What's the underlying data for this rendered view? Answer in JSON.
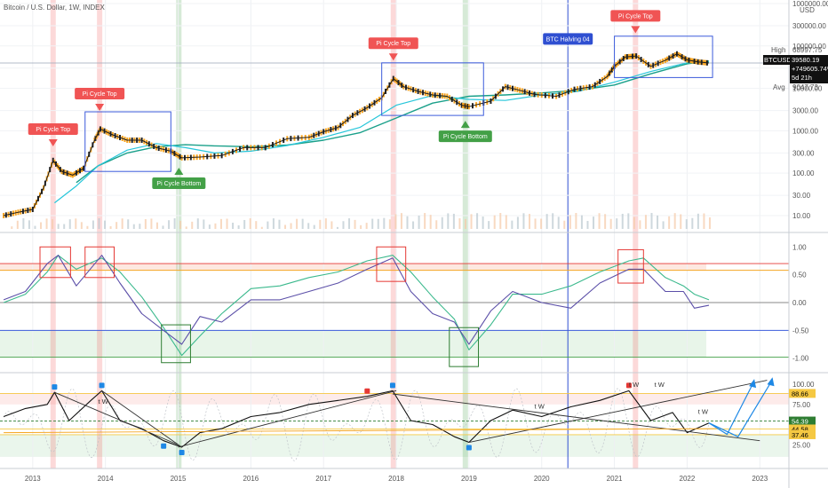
{
  "header": {
    "title": "Bitcoin / U.S. Dollar, 1W, INDEX"
  },
  "colors": {
    "up": "#f7a21b",
    "down": "#222222",
    "ma_slow": "#1aa08a",
    "ma_fast": "#26c6da",
    "osc_line": "#5b4fa8",
    "osc_signal": "#3bb98d",
    "rsi_line": "#111111",
    "top_red": "#f05454",
    "bottom_green": "#43a047",
    "halving_blue": "#2f4fd1",
    "box_blue": "#3b5bdb",
    "box_red": "#e53935",
    "box_green": "#2e7d32",
    "arrow_blue": "#1e88e5",
    "level_orange": "#f5a623"
  },
  "price_axis": {
    "ticks": [
      "1000000.00",
      "300000.00",
      "100000.00",
      "30000.00",
      "10000.00",
      "3000.00",
      "1000.00",
      "300.00",
      "100.00",
      "30.00",
      "10.00"
    ],
    "usd_label": "USD",
    "high_label": "High",
    "high_value": "68997.75",
    "symbol": "BTCUSD",
    "last_price": "39580.19",
    "change": "+749605.74%",
    "countdown": "5d 21h",
    "avg_label": "Avg",
    "avg_value": "9047.73"
  },
  "osc_axis": {
    "ticks": [
      "1.00",
      "0.50",
      "0.00",
      "-0.50",
      "-1.00"
    ]
  },
  "rsi_axis": {
    "ticks": [
      "100.00",
      "75.00",
      "50.00",
      "25.00"
    ],
    "tags": [
      {
        "value": "88.66",
        "color": "#f5c842",
        "text": "#000000"
      },
      {
        "value": "54.39",
        "color": "#2e7d32",
        "text": "#ffffff"
      },
      {
        "value": "44.58",
        "color": "#f5c842",
        "text": "#000000"
      },
      {
        "value": "37.46",
        "color": "#f5c842",
        "text": "#000000"
      }
    ]
  },
  "time_axis": {
    "labels": [
      "2013",
      "2014",
      "2015",
      "2016",
      "2017",
      "2018",
      "2019",
      "2020",
      "2021",
      "2022",
      "2023"
    ]
  },
  "annotations": {
    "tops": [
      {
        "label": "Pi Cycle Top",
        "date": 2013.28
      },
      {
        "label": "Pi Cycle Top",
        "date": 2013.92
      },
      {
        "label": "Pi Cycle Top",
        "date": 2017.96
      },
      {
        "label": "Pi Cycle Top",
        "date": 2021.29
      }
    ],
    "bottoms": [
      {
        "label": "Pi Cycle Bottom",
        "date": 2015.01
      },
      {
        "label": "Pi Cycle Bottom",
        "date": 2018.95
      }
    ],
    "halving": {
      "label": "BTC Halving 04",
      "date": 2020.36
    },
    "wave_labels": [
      "t W",
      "t W",
      "t W",
      "t W",
      "t W"
    ]
  },
  "chart_data": {
    "type": "line",
    "scale": "log",
    "x_range": [
      2012.55,
      2023.4
    ],
    "y_range": [
      4,
      1000000
    ],
    "series": [
      {
        "x": [
          2012.6,
          2012.8,
          2013.0,
          2013.15,
          2013.28,
          2013.4,
          2013.55,
          2013.7,
          2013.85,
          2013.93,
          2014.1,
          2014.3,
          2014.5,
          2014.7,
          2014.9,
          2015.05,
          2015.3,
          2015.6,
          2015.9,
          2016.2,
          2016.5,
          2016.8,
          2017.0,
          2017.2,
          2017.4,
          2017.6,
          2017.8,
          2017.96,
          2018.1,
          2018.3,
          2018.5,
          2018.7,
          2018.9,
          2019.0,
          2019.3,
          2019.5,
          2019.7,
          2019.9,
          2020.2,
          2020.45,
          2020.7,
          2020.9,
          2021.0,
          2021.15,
          2021.3,
          2021.5,
          2021.7,
          2021.86,
          2022.0,
          2022.15,
          2022.3
        ],
        "values": [
          10,
          12,
          14,
          45,
          200,
          110,
          90,
          130,
          600,
          1100,
          800,
          600,
          600,
          400,
          330,
          230,
          240,
          260,
          400,
          400,
          650,
          700,
          950,
          1200,
          2300,
          3500,
          6000,
          17000,
          11000,
          8500,
          7000,
          6500,
          4000,
          3700,
          5000,
          11000,
          9000,
          7200,
          6500,
          9500,
          11000,
          19000,
          33000,
          55000,
          58000,
          33000,
          46000,
          65000,
          47000,
          42000,
          39580
        ]
      },
      {
        "name": "",
        "x": [
          2013.3,
          2013.6,
          2013.9,
          2014.3,
          2014.7,
          2015.1,
          2015.5,
          2016.0,
          2016.5,
          2017.0,
          2017.5,
          2018.0,
          2018.5,
          2019.0,
          2019.5,
          2020.0,
          2020.5,
          2021.0,
          2021.5,
          2022.0,
          2022.3
        ],
        "values": [
          20,
          50,
          150,
          350,
          500,
          400,
          300,
          330,
          450,
          700,
          1200,
          4000,
          6800,
          5500,
          5200,
          7000,
          8500,
          14000,
          25000,
          40000,
          42000
        ]
      },
      {
        "name": "",
        "x": [
          2013.6,
          2013.9,
          2014.3,
          2014.7,
          2015.1,
          2015.5,
          2016.0,
          2016.5,
          2017.0,
          2017.5,
          2018.0,
          2018.5,
          2019.0,
          2019.5,
          2020.0,
          2020.5,
          2021.0,
          2021.5,
          2022.0,
          2022.3
        ],
        "values": [
          60,
          150,
          300,
          420,
          470,
          440,
          420,
          460,
          600,
          900,
          2000,
          4500,
          6500,
          7000,
          7800,
          9000,
          12000,
          22000,
          38000,
          44000
        ]
      }
    ]
  },
  "osc_data": {
    "x": [
      2012.6,
      2012.9,
      2013.2,
      2013.35,
      2013.6,
      2013.95,
      2014.2,
      2014.5,
      2014.8,
      2015.05,
      2015.3,
      2015.6,
      2016.0,
      2016.4,
      2016.8,
      2017.2,
      2017.6,
      2017.95,
      2018.2,
      2018.5,
      2018.8,
      2019.0,
      2019.3,
      2019.6,
      2020.0,
      2020.4,
      2020.8,
      2021.2,
      2021.4,
      2021.7,
      2021.95,
      2022.1,
      2022.3
    ],
    "line": [
      0.05,
      0.2,
      0.7,
      0.85,
      0.3,
      0.85,
      0.35,
      -0.2,
      -0.5,
      -0.75,
      -0.25,
      -0.35,
      0.05,
      0.05,
      0.2,
      0.35,
      0.6,
      0.8,
      0.2,
      -0.2,
      -0.35,
      -0.75,
      -0.15,
      0.2,
      0.0,
      -0.1,
      0.35,
      0.6,
      0.6,
      0.2,
      0.2,
      -0.1,
      -0.05
    ],
    "signal": [
      0.0,
      0.15,
      0.55,
      0.85,
      0.6,
      0.8,
      0.55,
      0.1,
      -0.45,
      -0.95,
      -0.6,
      -0.2,
      0.25,
      0.3,
      0.45,
      0.55,
      0.75,
      0.85,
      0.55,
      0.1,
      -0.3,
      -0.85,
      -0.4,
      0.15,
      0.15,
      0.3,
      0.55,
      0.75,
      0.8,
      0.45,
      0.3,
      0.15,
      0.05
    ]
  },
  "rsi_data": {
    "x": [
      2012.6,
      2012.9,
      2013.2,
      2013.3,
      2013.5,
      2013.8,
      2013.95,
      2014.2,
      2014.5,
      2014.8,
      2015.05,
      2015.3,
      2015.6,
      2016.0,
      2016.4,
      2016.8,
      2017.2,
      2017.6,
      2017.95,
      2018.2,
      2018.5,
      2018.8,
      2019.0,
      2019.3,
      2019.6,
      2020.0,
      2020.4,
      2020.8,
      2021.2,
      2021.5,
      2021.8,
      2022.0,
      2022.3
    ],
    "values": [
      60,
      70,
      75,
      90,
      55,
      80,
      92,
      55,
      45,
      30,
      22,
      40,
      45,
      60,
      65,
      75,
      80,
      85,
      92,
      55,
      50,
      35,
      28,
      55,
      68,
      60,
      72,
      80,
      92,
      55,
      65,
      40,
      52
    ]
  }
}
